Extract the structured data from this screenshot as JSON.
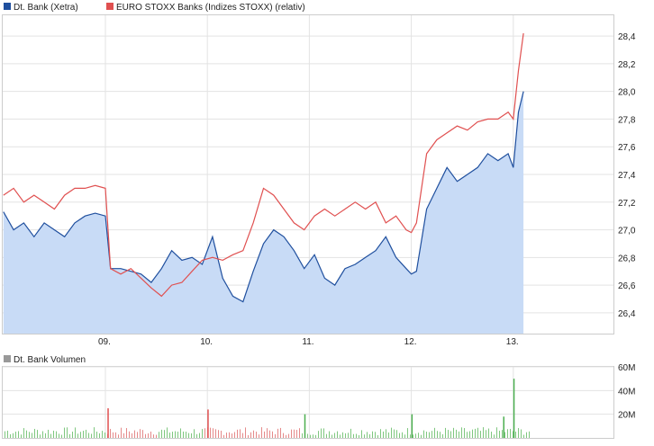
{
  "chart_data": [
    {
      "type": "line",
      "legend": [
        {
          "name": "Dt. Bank (Xetra)",
          "color": "#1f4f9e"
        },
        {
          "name": "EURO STOXX Banks (Indizes STOXX) (relativ)",
          "color": "#e05050"
        }
      ],
      "x_ticks": [
        "09.",
        "10.",
        "11.",
        "12.",
        "13."
      ],
      "y_ticks": [
        "26,4",
        "26,6",
        "26,8",
        "27,0",
        "27,2",
        "27,4",
        "27,6",
        "27,8",
        "28,0",
        "28,2",
        "28,4"
      ],
      "ylim": [
        26.25,
        28.55
      ],
      "grid": true,
      "legend_position": "top-left",
      "series": [
        {
          "name": "Dt. Bank (Xetra)",
          "color": "#1f4f9e",
          "fill": "#c8dbf6",
          "x": [
            8.0,
            8.1,
            8.2,
            8.3,
            8.4,
            8.5,
            8.6,
            8.7,
            8.8,
            8.9,
            9.0,
            9.05,
            9.15,
            9.25,
            9.35,
            9.45,
            9.55,
            9.65,
            9.75,
            9.85,
            9.95,
            10.05,
            10.15,
            10.25,
            10.35,
            10.45,
            10.55,
            10.65,
            10.75,
            10.85,
            10.95,
            11.05,
            11.15,
            11.25,
            11.35,
            11.45,
            11.55,
            11.65,
            11.75,
            11.85,
            11.95,
            12.0,
            12.05,
            12.15,
            12.25,
            12.35,
            12.45,
            12.55,
            12.65,
            12.75,
            12.85,
            12.95,
            13.0,
            13.05,
            13.1
          ],
          "y": [
            27.13,
            27.0,
            27.05,
            26.95,
            27.05,
            27.0,
            26.95,
            27.05,
            27.1,
            27.12,
            27.1,
            26.72,
            26.72,
            26.7,
            26.68,
            26.62,
            26.72,
            26.85,
            26.78,
            26.8,
            26.75,
            26.95,
            26.65,
            26.52,
            26.48,
            26.7,
            26.9,
            27.0,
            26.95,
            26.85,
            26.72,
            26.82,
            26.65,
            26.6,
            26.72,
            26.75,
            26.8,
            26.85,
            26.95,
            26.8,
            26.72,
            26.68,
            26.7,
            27.15,
            27.3,
            27.45,
            27.35,
            27.4,
            27.45,
            27.55,
            27.5,
            27.55,
            27.45,
            27.85,
            28.0
          ]
        },
        {
          "name": "EURO STOXX Banks (Indizes STOXX) (relativ)",
          "color": "#e05050",
          "x": [
            8.0,
            8.1,
            8.2,
            8.3,
            8.4,
            8.5,
            8.6,
            8.7,
            8.8,
            8.9,
            9.0,
            9.05,
            9.15,
            9.25,
            9.35,
            9.45,
            9.55,
            9.65,
            9.75,
            9.85,
            9.95,
            10.05,
            10.15,
            10.25,
            10.35,
            10.45,
            10.55,
            10.65,
            10.75,
            10.85,
            10.95,
            11.05,
            11.15,
            11.25,
            11.35,
            11.45,
            11.55,
            11.65,
            11.75,
            11.85,
            11.95,
            12.0,
            12.05,
            12.15,
            12.25,
            12.35,
            12.45,
            12.55,
            12.65,
            12.75,
            12.85,
            12.95,
            13.0,
            13.05,
            13.1
          ],
          "y": [
            27.25,
            27.3,
            27.2,
            27.25,
            27.2,
            27.15,
            27.25,
            27.3,
            27.3,
            27.32,
            27.3,
            26.72,
            26.68,
            26.72,
            26.65,
            26.58,
            26.52,
            26.6,
            26.62,
            26.7,
            26.78,
            26.8,
            26.78,
            26.82,
            26.85,
            27.05,
            27.3,
            27.25,
            27.15,
            27.05,
            27.0,
            27.1,
            27.15,
            27.1,
            27.15,
            27.2,
            27.15,
            27.2,
            27.05,
            27.1,
            27.0,
            26.98,
            27.05,
            27.55,
            27.65,
            27.7,
            27.75,
            27.72,
            27.78,
            27.8,
            27.8,
            27.85,
            27.8,
            28.15,
            28.42
          ]
        }
      ]
    },
    {
      "type": "bar",
      "legend": [
        {
          "name": "Dt. Bank Volumen",
          "color": "#999999"
        }
      ],
      "y_ticks": [
        "20M",
        "40M",
        "60M"
      ],
      "ylim": [
        0,
        60
      ],
      "grid": true,
      "legend_position": "top-left",
      "series": [
        {
          "name": "Dt. Bank Volumen",
          "spikes": [
            {
              "x": 9.02,
              "value": 25,
              "color": "#e05050"
            },
            {
              "x": 10.0,
              "value": 24,
              "color": "#e05050"
            },
            {
              "x": 10.95,
              "value": 20,
              "color": "#4caf50"
            },
            {
              "x": 12.0,
              "value": 20,
              "color": "#4caf50"
            },
            {
              "x": 12.9,
              "value": 18,
              "color": "#4caf50"
            },
            {
              "x": 13.0,
              "value": 50,
              "color": "#4caf50"
            }
          ]
        }
      ]
    }
  ]
}
